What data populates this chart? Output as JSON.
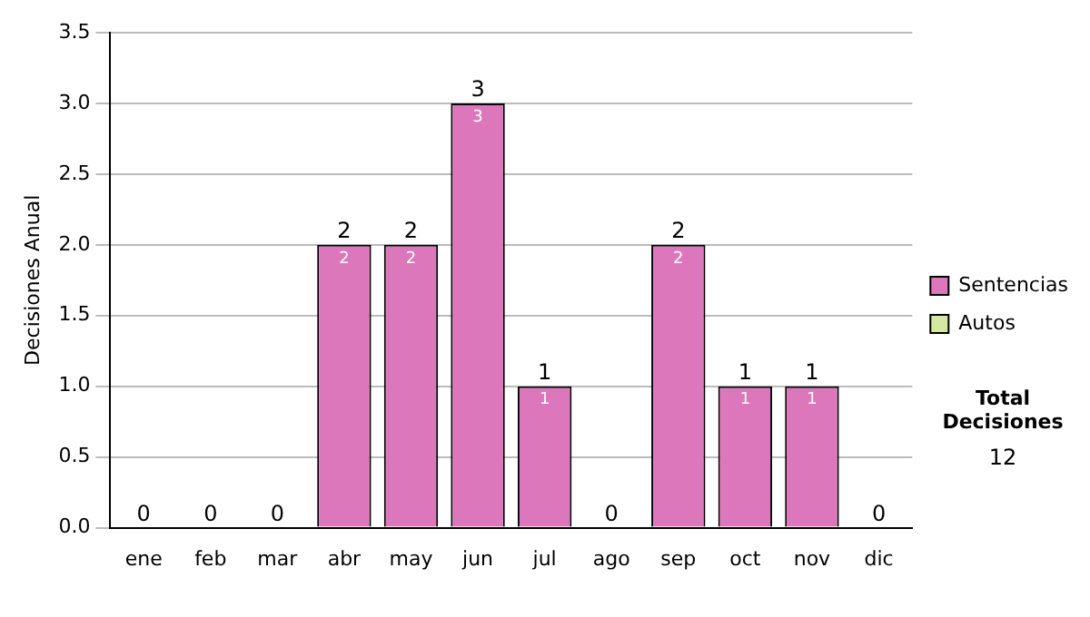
{
  "chart_data": {
    "type": "bar",
    "ylabel": "Decisiones Anual",
    "categories": [
      "ene",
      "feb",
      "mar",
      "abr",
      "may",
      "jun",
      "jul",
      "ago",
      "sep",
      "oct",
      "nov",
      "dic"
    ],
    "series": [
      {
        "name": "Sentencias",
        "color": "#dd77bb",
        "values": [
          0,
          0,
          0,
          2,
          2,
          3,
          1,
          0,
          2,
          1,
          1,
          0
        ],
        "value_labels": [
          null,
          null,
          null,
          "2",
          "2",
          "3",
          "1",
          null,
          "2",
          "1",
          "1",
          null
        ]
      },
      {
        "name": "Autos",
        "color": "#d4e8a0",
        "values": [
          0,
          0,
          0,
          0,
          0,
          0,
          0,
          0,
          0,
          0,
          0,
          0
        ]
      }
    ],
    "stacked": true,
    "totals": [
      "0",
      "0",
      "0",
      "2",
      "2",
      "3",
      "1",
      "0",
      "2",
      "1",
      "1",
      "0"
    ],
    "ylim": [
      0,
      3.5
    ],
    "yticks": [
      {
        "value": 0,
        "label": "0.0"
      },
      {
        "value": 0.5,
        "label": "0.5"
      },
      {
        "value": 1,
        "label": "1.0"
      },
      {
        "value": 1.5,
        "label": "1.5"
      },
      {
        "value": 2,
        "label": "2.0"
      },
      {
        "value": 2.5,
        "label": "2.5"
      },
      {
        "value": 3,
        "label": "3.0"
      },
      {
        "value": 3.5,
        "label": "3.5"
      }
    ],
    "grid": "y",
    "legend": "right",
    "annotations": [
      "Total Decisiones",
      "12"
    ]
  }
}
